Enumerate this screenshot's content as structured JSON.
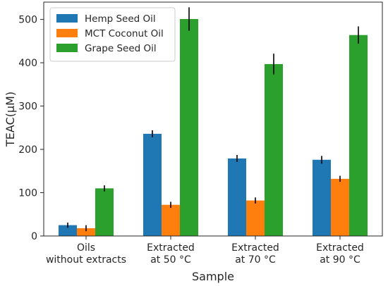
{
  "chart_data": {
    "type": "bar",
    "xlabel": "Sample",
    "ylabel": "TEAC(μM)",
    "ylim": [
      0,
      540
    ],
    "yticks": [
      0,
      100,
      200,
      300,
      400,
      500
    ],
    "grid": false,
    "legend_position": "top-left",
    "categories": [
      [
        "Oils",
        "without extracts"
      ],
      [
        "Extracted",
        "at 50 °C"
      ],
      [
        "Extracted",
        "at 70 °C"
      ],
      [
        "Extracted",
        "at 90 °C"
      ]
    ],
    "series": [
      {
        "name": "Hemp Seed Oil",
        "color": "#1f77b4",
        "values": [
          25,
          236,
          179,
          176
        ],
        "errors": [
          6,
          8,
          8,
          9
        ]
      },
      {
        "name": "MCT Coconut Oil",
        "color": "#ff7f0e",
        "values": [
          18,
          72,
          82,
          132
        ],
        "errors": [
          7,
          7,
          7,
          7
        ]
      },
      {
        "name": "Grape Seed Oil",
        "color": "#2ca02c",
        "values": [
          110,
          501,
          397,
          464
        ],
        "errors": [
          7,
          27,
          24,
          20
        ]
      }
    ]
  }
}
